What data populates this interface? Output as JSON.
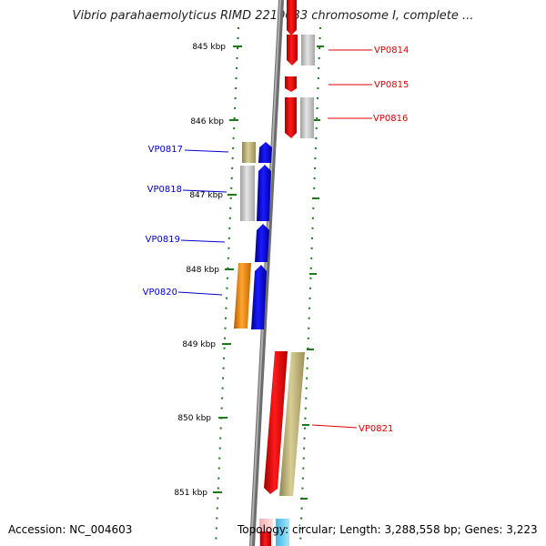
{
  "title": "Vibrio parahaemolyticus RIMD 2210633 chromosome I, complete ...",
  "footer": {
    "accession": "Accession: NC_004603",
    "topology": "Topology: circular; Length: 3,288,558 bp; Genes: 3,223"
  },
  "ruler": {
    "unit": "kbp",
    "ticks": [
      {
        "label": "845 kbp"
      },
      {
        "label": "846 kbp"
      },
      {
        "label": "847 kbp"
      },
      {
        "label": "848 kbp"
      },
      {
        "label": "849 kbp"
      },
      {
        "label": "850 kbp"
      },
      {
        "label": "851 kbp"
      }
    ]
  },
  "genes": [
    {
      "label": "VP0814",
      "strand": "+",
      "color": "#dd0000"
    },
    {
      "label": "VP0815",
      "strand": "+",
      "color": "#dd0000"
    },
    {
      "label": "VP0816",
      "strand": "+",
      "color": "#dd0000"
    },
    {
      "label": "VP0817",
      "strand": "-",
      "color": "#0000cc"
    },
    {
      "label": "VP0818",
      "strand": "-",
      "color": "#0000cc"
    },
    {
      "label": "VP0819",
      "strand": "-",
      "color": "#0000cc"
    },
    {
      "label": "VP0820",
      "strand": "-",
      "color": "#0000cc"
    },
    {
      "label": "VP0821",
      "strand": "+",
      "color": "#dd0000"
    }
  ],
  "colors": {
    "forward": "#dd0000",
    "reverse": "#0000cc",
    "ruler": "#1a7a1a",
    "backbone": "#8a8a8a",
    "gray_feature": "#c4c4c4",
    "olive_feature": "#c2b77a",
    "orange_feature": "#ff9a1a"
  }
}
